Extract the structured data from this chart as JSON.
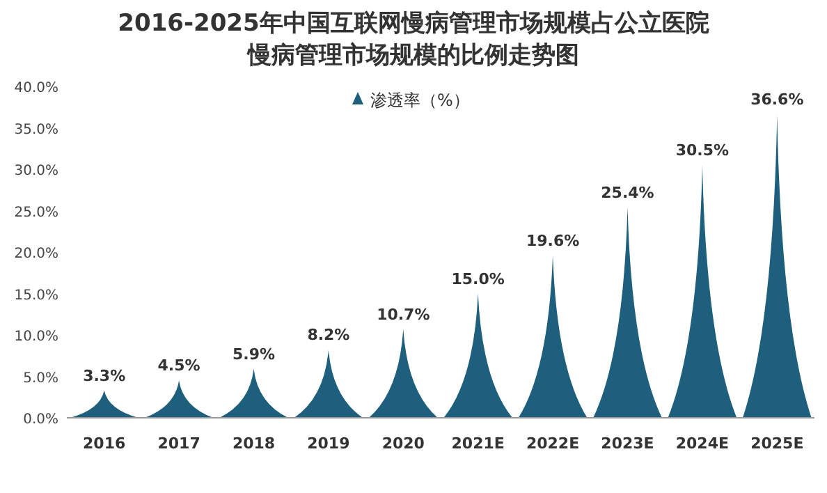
{
  "chart_data": {
    "type": "bar",
    "title": "2016-2025年中国互联网慢病管理市场规模占公立医院慢病管理市场规模的比例走势图",
    "categories": [
      "2016",
      "2017",
      "2018",
      "2019",
      "2020",
      "2021E",
      "2022E",
      "2023E",
      "2024E",
      "2025E"
    ],
    "series": [
      {
        "name": "渗透率（%）",
        "color": "#1d5f7c",
        "values": [
          3.3,
          4.5,
          5.9,
          8.2,
          10.7,
          15.0,
          19.6,
          25.4,
          30.5,
          36.6
        ],
        "value_labels": [
          "3.3%",
          "4.5%",
          "5.9%",
          "8.2%",
          "10.7%",
          "15.0%",
          "19.6%",
          "25.4%",
          "30.5%",
          "36.6%"
        ]
      }
    ],
    "ylim": [
      0,
      40
    ],
    "yticks": [
      {
        "value": 0,
        "label": "0.0%"
      },
      {
        "value": 5,
        "label": "5.0%"
      },
      {
        "value": 10,
        "label": "10.0%"
      },
      {
        "value": 15,
        "label": "15.0%"
      },
      {
        "value": 20,
        "label": "20.0%"
      },
      {
        "value": 25,
        "label": "25.0%"
      },
      {
        "value": 30,
        "label": "30.0%"
      },
      {
        "value": 35,
        "label": "35.0%"
      },
      {
        "value": 40,
        "label": "40.0%"
      }
    ],
    "legend": "top"
  }
}
